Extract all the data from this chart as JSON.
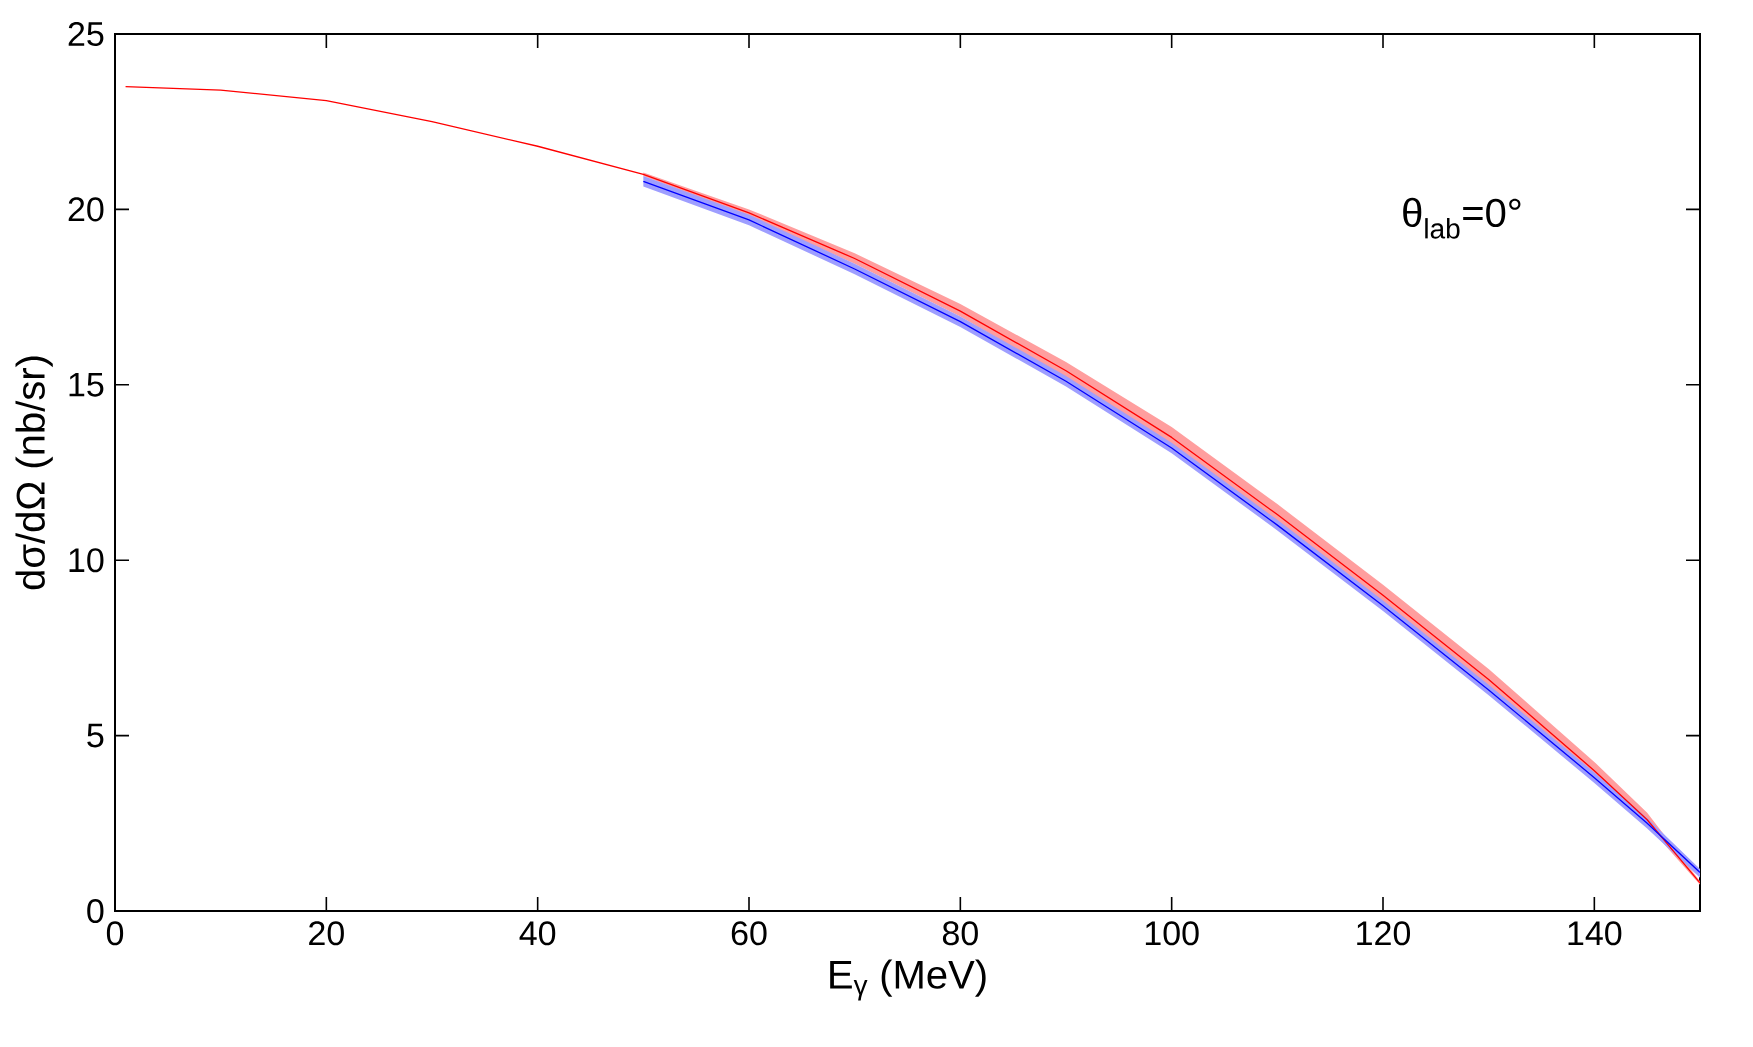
{
  "chart_data": {
    "type": "line",
    "xlabel": "E$_{γ}$ (MeV)",
    "ylabel": "dσ/dΩ (nb/sr)",
    "annotations": [
      "θ$_{lab}$=0°"
    ],
    "xlim": [
      0,
      150
    ],
    "xticks": [
      0,
      20,
      40,
      60,
      80,
      100,
      120,
      140
    ],
    "ylim": [
      0,
      25
    ],
    "yticks": [
      0,
      5,
      10,
      15,
      20,
      25
    ],
    "grid": false,
    "marker": "none",
    "line_style": "solid",
    "series": [
      {
        "color": "#ff0000",
        "x": [
          1,
          10,
          20,
          30,
          40,
          50,
          60,
          70,
          80,
          90,
          100,
          110,
          120,
          130,
          140,
          145,
          150
        ],
        "values": [
          23.5,
          23.4,
          23.1,
          22.5,
          21.8,
          21.0,
          19.9,
          18.6,
          17.1,
          15.4,
          13.5,
          11.3,
          9.0,
          6.6,
          4.0,
          2.6,
          0.8
        ],
        "lower": [
          null,
          null,
          null,
          null,
          null,
          20.95,
          19.8,
          18.45,
          16.95,
          15.2,
          13.25,
          11.0,
          8.7,
          6.3,
          3.75,
          2.45,
          0.75
        ],
        "upper": [
          null,
          null,
          null,
          null,
          null,
          21.05,
          20.0,
          18.75,
          17.3,
          15.65,
          13.8,
          11.6,
          9.3,
          6.9,
          4.25,
          2.8,
          0.85
        ]
      },
      {
        "color": "#0000ff",
        "x": [
          50,
          60,
          70,
          80,
          90,
          100,
          110,
          120,
          130,
          140,
          145,
          150
        ],
        "values": [
          20.8,
          19.7,
          18.3,
          16.8,
          15.1,
          13.2,
          11.0,
          8.7,
          6.3,
          3.8,
          2.5,
          1.1
        ],
        "lower": [
          20.65,
          19.55,
          18.15,
          16.65,
          14.95,
          13.05,
          10.85,
          8.55,
          6.15,
          3.65,
          2.35,
          0.95
        ],
        "upper": [
          20.95,
          19.85,
          18.45,
          16.95,
          15.25,
          13.35,
          11.15,
          8.85,
          6.45,
          3.95,
          2.65,
          1.2
        ]
      }
    ]
  }
}
